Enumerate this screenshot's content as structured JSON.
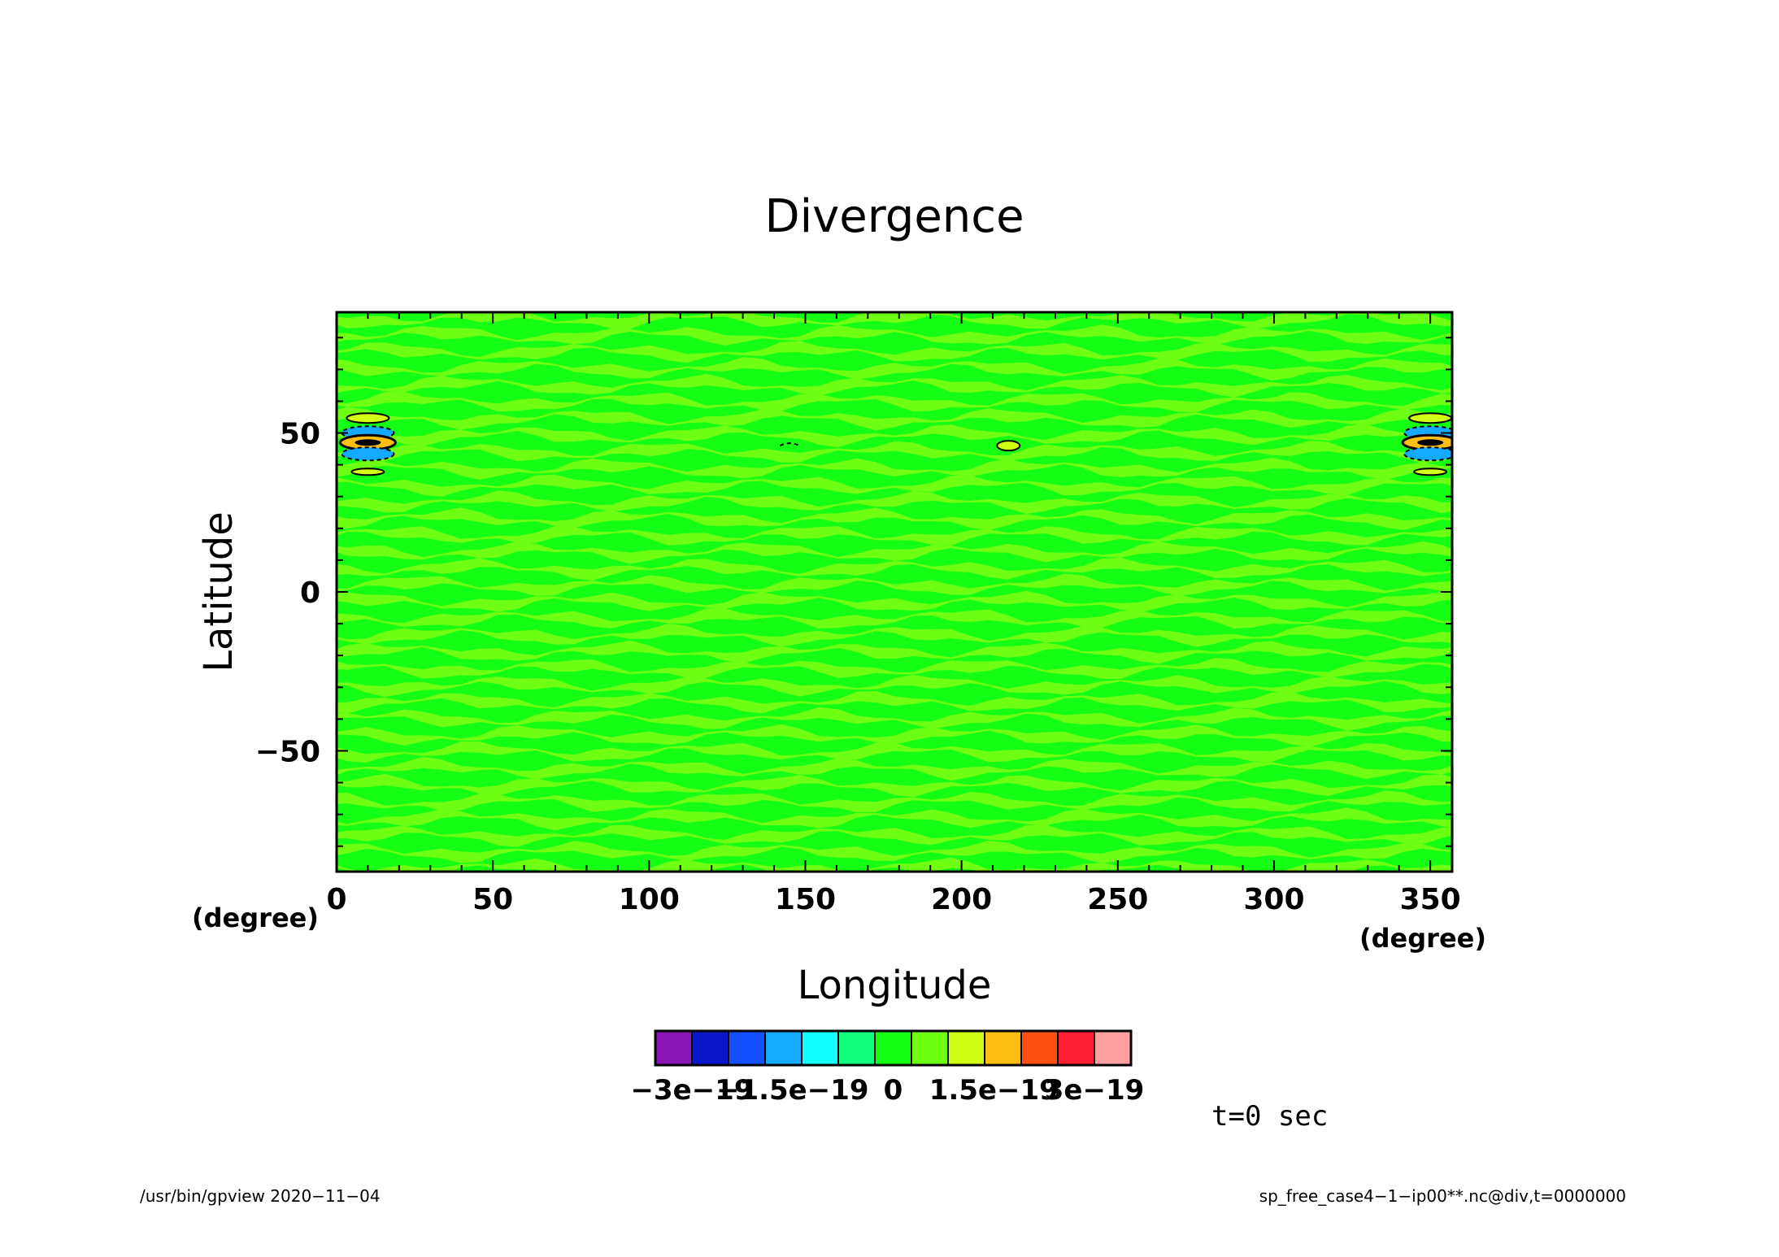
{
  "chart_data": {
    "type": "heatmap",
    "title": "Divergence",
    "xlabel": "Longitude",
    "ylabel": "Latitude",
    "x_unit": "(degree)",
    "y_unit_label": "(degree)",
    "xlim": [
      0,
      357
    ],
    "ylim": [
      -88,
      88
    ],
    "x_ticks": [
      "0",
      "50",
      "100",
      "150",
      "200",
      "250",
      "300",
      "350"
    ],
    "y_ticks": [
      "50",
      "0",
      "−50"
    ],
    "grid": false,
    "colorbar": {
      "colors": [
        "#8a14b4",
        "#0a14c8",
        "#1450ff",
        "#14aaff",
        "#14ffff",
        "#14ff82",
        "#14ff14",
        "#6eff14",
        "#d2ff14",
        "#ffbe14",
        "#ff5014",
        "#ff1e32",
        "#ffa0a0"
      ],
      "labels": [
        "−3e−19",
        "−1.5e−19",
        "0",
        "1.5e−19",
        "3e−19"
      ],
      "label_values": [
        -3e-19,
        -1.5e-19,
        0,
        1.5e-19,
        3e-19
      ]
    },
    "field_colors": {
      "dominant_a": "#14ff14",
      "dominant_b": "#6eff14"
    },
    "features": [
      {
        "lon": 10,
        "lat": 47,
        "kind": "closed contours"
      },
      {
        "lon": 350,
        "lat": 47,
        "kind": "closed contours"
      },
      {
        "lon": 215,
        "lat": 46,
        "kind": "small positive contour"
      },
      {
        "lon": 145,
        "lat": 46,
        "kind": "small negative contour"
      }
    ]
  },
  "annotations": {
    "time": "t=0 sec",
    "footer_left": "/usr/bin/gpview   2020−11−04",
    "footer_right": "sp_free_case4−1−ip00**.nc@div,t=0000000"
  }
}
